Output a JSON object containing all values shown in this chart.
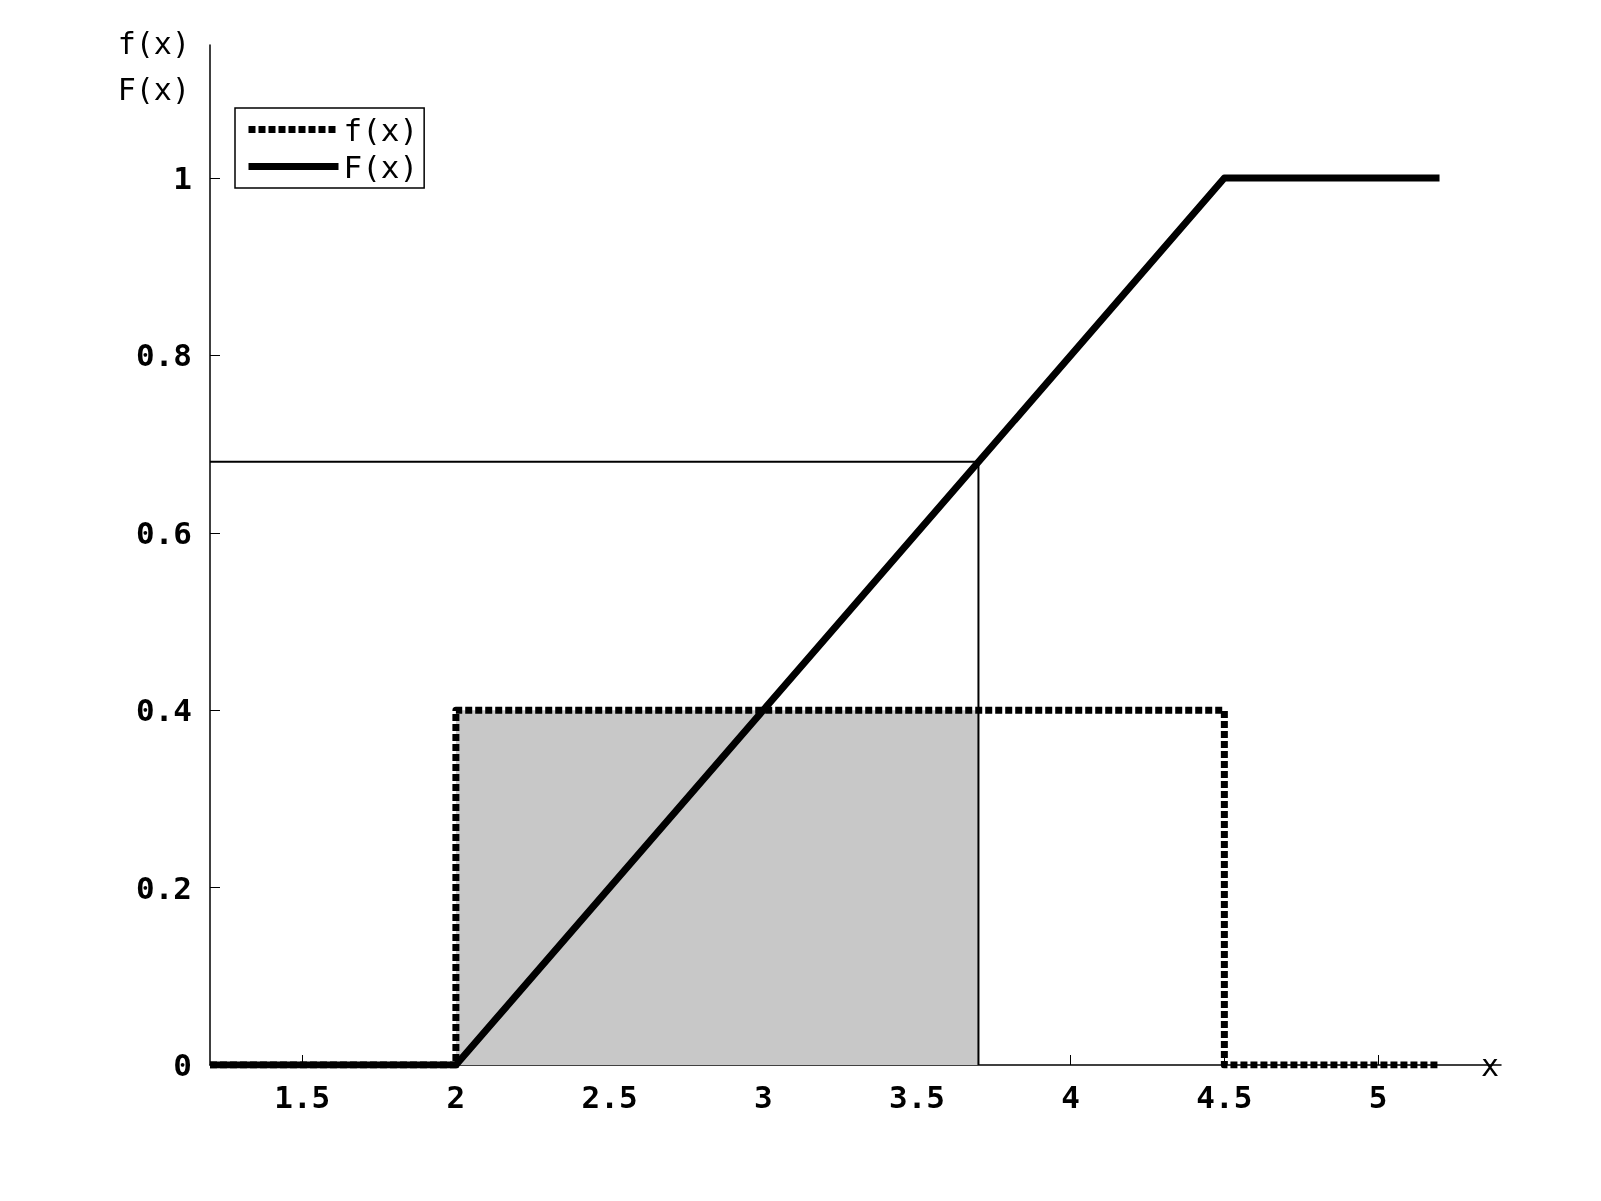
{
  "chart_data": {
    "type": "line",
    "xlabel": "x",
    "ylabel": "f(x)\nF(x)",
    "xlim": [
      1.2,
      5.4
    ],
    "xticks": [
      1.5,
      2,
      2.5,
      3,
      3.5,
      4,
      4.5,
      5
    ],
    "ylim": [
      0,
      1.15
    ],
    "yticks": [
      0,
      0.2,
      0.4,
      0.6,
      0.8,
      1
    ],
    "series": [
      {
        "type": "area",
        "color": "#c8c8c8",
        "x": [
          2,
          3.7
        ],
        "values": [
          0.4,
          0.4
        ]
      },
      {
        "name": "f(x)",
        "color": "#000000",
        "line_style": "dotted",
        "x": [
          1.2,
          2,
          2,
          4.5,
          4.5,
          5.2
        ],
        "values": [
          0,
          0,
          0.4,
          0.4,
          0,
          0
        ]
      },
      {
        "name": "F(x)",
        "color": "#000000",
        "line_style": "solid",
        "x": [
          1.2,
          2,
          4.5,
          5.2
        ],
        "values": [
          0,
          0,
          1,
          1
        ]
      },
      {
        "color": "#000000",
        "line_style": "solid",
        "x": [
          1.2,
          3.7,
          3.7
        ],
        "values": [
          0.68,
          0.68,
          0
        ]
      }
    ],
    "legend": "top left",
    "grid": false,
    "marker": "none"
  }
}
